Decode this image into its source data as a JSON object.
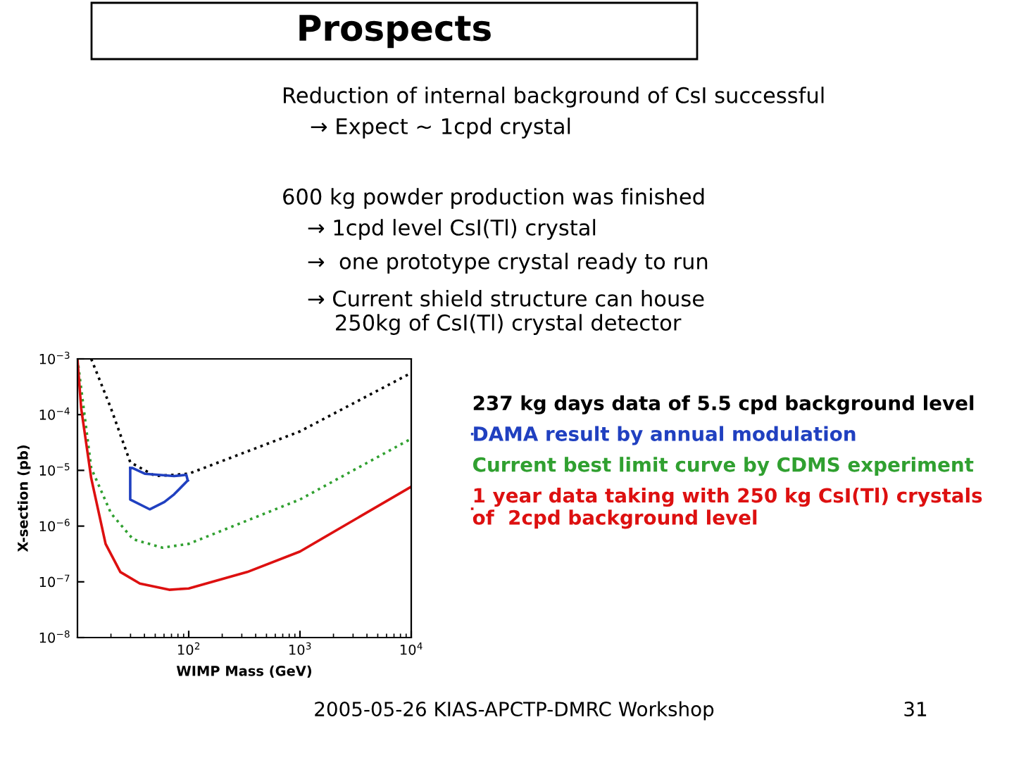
{
  "chart_data": {
    "type": "line",
    "title": "Prospects",
    "xlabel": "WIMP Mass (GeV)",
    "ylabel": "X-section (pb)",
    "log": "xy",
    "xlim": [
      10,
      10000
    ],
    "ylim": [
      1e-08,
      0.001
    ],
    "xticks": [
      {
        "value": 100,
        "label": "10$^{2}$"
      },
      {
        "value": 1000,
        "label": "10$^{3}$"
      },
      {
        "value": 10000,
        "label": "10$^{4}$"
      }
    ],
    "yticks": [
      {
        "value": 1e-08,
        "label": "10$^{−8}$"
      },
      {
        "value": 1e-07,
        "label": "10$^{−7}$"
      },
      {
        "value": 1e-06,
        "label": "10$^{−6}$"
      },
      {
        "value": 1e-05,
        "label": "10$^{−5}$"
      },
      {
        "value": 0.0001,
        "label": "10$^{−4}$"
      },
      {
        "value": 0.001,
        "label": "10$^{−3}$"
      }
    ],
    "grid": false,
    "legend": "right",
    "marker": "none",
    "series": [
      {
        "name": "237 kg days data of 5.5 cpd background level",
        "color": "#000000",
        "line_style": "dotted",
        "x": [
          13.3,
          20,
          29.8,
          50,
          100,
          1000,
          10000
        ],
        "values": [
          0.001,
          0.00013,
          1.4e-05,
          7.9e-06,
          8.7e-06,
          5e-05,
          0.00056
        ]
      },
      {
        "name": "DAMA result by annual modulation",
        "color": "#2040c0",
        "line_style": "solid",
        "x": [
          29.8,
          31.3,
          40.3,
          73.8,
          95.1,
          98
        ],
        "values": [
          1.1e-05,
          1.1e-05,
          8.7e-06,
          7.9e-06,
          8.3e-06,
          6.6e-06
        ]
      },
      {
        "color": "#2040c0",
        "line_style": "solid",
        "x": [
          29.8,
          29.8,
          44.6,
          60.4,
          73.8,
          98
        ],
        "values": [
          1.1e-05,
          3e-06,
          2e-06,
          2.7e-06,
          3.7e-06,
          6.6e-06
        ]
      },
      {
        "name": "Current best limit curve by CDMS experiment",
        "color": "#30a030",
        "line_style": "dotted",
        "x": [
          10,
          13.3,
          20,
          31.6,
          58,
          100,
          1000,
          10000
        ],
        "values": [
          0.001,
          1.1e-05,
          1.7e-06,
          5.8e-07,
          4.1e-07,
          4.8e-07,
          3e-06,
          3.7e-05
        ]
      },
      {
        "name": "1 year data taking with 250 kg CsI(Tl) crystals\nof  2cpd background level",
        "color": "#dd1010",
        "line_style": "solid",
        "x": [
          10,
          10.8,
          13.3,
          17.9,
          24.3,
          36.4,
          66.8,
          100,
          336,
          1000,
          10000
        ],
        "values": [
          0.001,
          0.00013,
          7.2e-06,
          4.8e-07,
          1.5e-07,
          9.3e-08,
          7.2e-08,
          7.6e-08,
          1.5e-07,
          3.5e-07,
          5.1e-06
        ]
      }
    ],
    "annotations": [
      "Reduction of internal background of CsI successful",
      "→ Expect ~ 1cpd crystal",
      "600 kg powder production was finished",
      "→ 1cpd level CsI(Tl) crystal",
      "→  one prototype crystal ready to run",
      "→ Current shield structure can house\n    250kg of CsI(Tl) crystal detector",
      "2005-05-26 KIAS-APCTP-DMRC Workshop",
      "31"
    ]
  }
}
